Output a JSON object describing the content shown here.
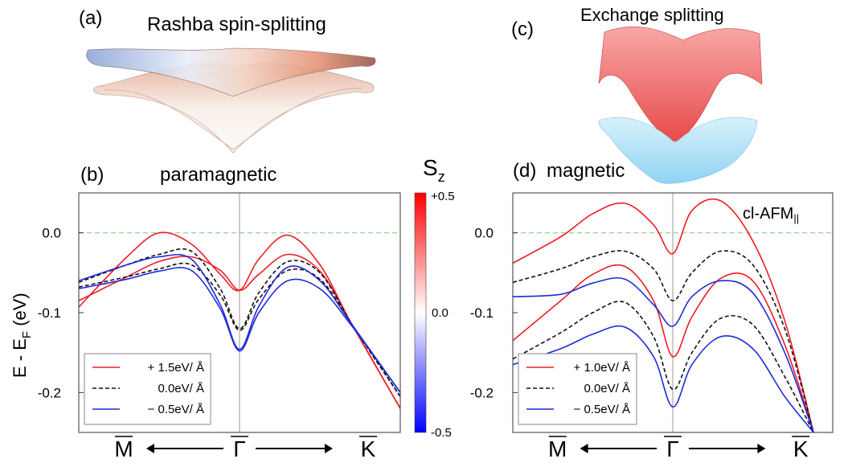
{
  "panels": {
    "a": {
      "letter": "(a)",
      "title": "Rashba spin-splitting"
    },
    "b": {
      "letter": "(b)",
      "title": "paramagnetic"
    },
    "c": {
      "letter": "(c)",
      "title": "Exchange splitting"
    },
    "d": {
      "letter": "(d)",
      "title": "magnetic",
      "tag_main": "cl-AFM",
      "tag_sub": "||"
    }
  },
  "colorbar": {
    "label_main": "S",
    "label_sub": "z",
    "ticks": [
      "+0.5",
      "0.0",
      "-0.5"
    ],
    "colors": {
      "top": "#ff0000",
      "mid": "#ffffff",
      "bottom": "#0000ff"
    }
  },
  "axis": {
    "ylabel_main": "E - E",
    "ylabel_sub": "F",
    "ylabel_unit": " (eV)",
    "x_left": "M",
    "x_center": "Γ",
    "x_right": "K"
  },
  "colors": {
    "red": "#ee1c25",
    "black": "#111111",
    "blue": "#1e2bd8",
    "fermi": "#9fd89a"
  },
  "chart_data": [
    {
      "panel": "b",
      "type": "line",
      "title": "paramagnetic",
      "ylabel": "E - E_F (eV)",
      "ylim": [
        -0.25,
        0.05
      ],
      "xlim": [
        -1,
        1
      ],
      "yticks": [
        "0.0",
        "-0.1",
        "-0.2"
      ],
      "ytick_values": [
        0.0,
        -0.1,
        -0.2
      ],
      "xticklabels": [
        "M",
        "Γ",
        "K"
      ],
      "fermi_level": 0.0,
      "x": [
        -1,
        -0.7,
        -0.5,
        -0.3,
        -0.12,
        0,
        0.12,
        0.3,
        0.5,
        0.7,
        1
      ],
      "legend": [
        {
          "label": "+ 1.5eV/ Å",
          "style": "solid",
          "color": "red"
        },
        {
          "label": "0.0eV/ Å",
          "style": "dashed",
          "color": "black"
        },
        {
          "label": "− 0.5eV/ Å",
          "style": "solid",
          "color": "blue"
        }
      ],
      "series": [
        {
          "name": "+1.5eV/Å upper",
          "color": "red",
          "style": "solid",
          "values": [
            -0.093,
            -0.03,
            0.0,
            -0.014,
            -0.052,
            -0.072,
            -0.033,
            -0.003,
            -0.04,
            -0.115,
            -0.22
          ]
        },
        {
          "name": "+1.5eV/Å lower",
          "color": "red",
          "style": "solid",
          "values": [
            -0.085,
            -0.055,
            -0.036,
            -0.03,
            -0.047,
            -0.072,
            -0.052,
            -0.027,
            -0.048,
            -0.115,
            -0.22
          ]
        },
        {
          "name": "0.0eV/Å upper",
          "color": "black",
          "style": "dashed",
          "values": [
            -0.062,
            -0.04,
            -0.027,
            -0.023,
            -0.07,
            -0.12,
            -0.075,
            -0.036,
            -0.05,
            -0.115,
            -0.205
          ]
        },
        {
          "name": "0.0eV/Å lower",
          "color": "black",
          "style": "dashed",
          "values": [
            -0.068,
            -0.055,
            -0.045,
            -0.04,
            -0.078,
            -0.122,
            -0.083,
            -0.047,
            -0.058,
            -0.115,
            -0.205
          ]
        },
        {
          "name": "-0.5eV/Å upper",
          "color": "blue",
          "style": "solid",
          "values": [
            -0.06,
            -0.04,
            -0.03,
            -0.033,
            -0.09,
            -0.146,
            -0.092,
            -0.043,
            -0.06,
            -0.115,
            -0.2
          ]
        },
        {
          "name": "-0.5eV/Å lower",
          "color": "blue",
          "style": "solid",
          "values": [
            -0.07,
            -0.058,
            -0.048,
            -0.047,
            -0.095,
            -0.148,
            -0.1,
            -0.06,
            -0.07,
            -0.117,
            -0.2
          ]
        }
      ]
    },
    {
      "panel": "d",
      "type": "line",
      "title": "magnetic",
      "ylim": [
        -0.25,
        0.05
      ],
      "xlim": [
        -1,
        1
      ],
      "yticks": [
        "0.0",
        "-0.1",
        "-0.2"
      ],
      "ytick_values": [
        0.0,
        -0.1,
        -0.2
      ],
      "xticklabels": [
        "M",
        "Γ",
        "K"
      ],
      "fermi_level": 0.0,
      "x": [
        -1,
        -0.7,
        -0.5,
        -0.3,
        -0.12,
        0,
        0.12,
        0.3,
        0.5,
        0.7,
        0.88
      ],
      "legend": [
        {
          "label": "+ 1.0eV/ Å",
          "style": "solid",
          "color": "red"
        },
        {
          "label": "0.0eV/ Å",
          "style": "dashed",
          "color": "black"
        },
        {
          "label": "− 0.5eV/ Å",
          "style": "solid",
          "color": "blue"
        }
      ],
      "series": [
        {
          "name": "+1.0eV/Å upper",
          "color": "red",
          "style": "solid",
          "values": [
            -0.038,
            -0.005,
            0.024,
            0.037,
            0.01,
            -0.026,
            0.028,
            0.04,
            -0.01,
            -0.11,
            -0.25
          ]
        },
        {
          "name": "+1.0eV/Å lower",
          "color": "red",
          "style": "solid",
          "values": [
            -0.135,
            -0.085,
            -0.052,
            -0.042,
            -0.085,
            -0.155,
            -0.105,
            -0.057,
            -0.06,
            -0.14,
            -0.25
          ]
        },
        {
          "name": "0.0eV/Å upper",
          "color": "black",
          "style": "dashed",
          "values": [
            -0.062,
            -0.045,
            -0.03,
            -0.023,
            -0.045,
            -0.085,
            -0.05,
            -0.023,
            -0.04,
            -0.12,
            -0.25
          ]
        },
        {
          "name": "0.0eV/Å lower",
          "color": "black",
          "style": "dashed",
          "values": [
            -0.158,
            -0.125,
            -0.1,
            -0.087,
            -0.13,
            -0.196,
            -0.15,
            -0.107,
            -0.115,
            -0.18,
            -0.25
          ]
        },
        {
          "name": "-0.5eV/Å upper",
          "color": "blue",
          "style": "solid",
          "values": [
            -0.08,
            -0.077,
            -0.063,
            -0.058,
            -0.09,
            -0.117,
            -0.08,
            -0.06,
            -0.075,
            -0.15,
            -0.25
          ]
        },
        {
          "name": "-0.5eV/Å lower",
          "color": "blue",
          "style": "solid",
          "values": [
            -0.165,
            -0.145,
            -0.127,
            -0.118,
            -0.155,
            -0.218,
            -0.165,
            -0.13,
            -0.145,
            -0.205,
            -0.25
          ]
        }
      ]
    }
  ]
}
